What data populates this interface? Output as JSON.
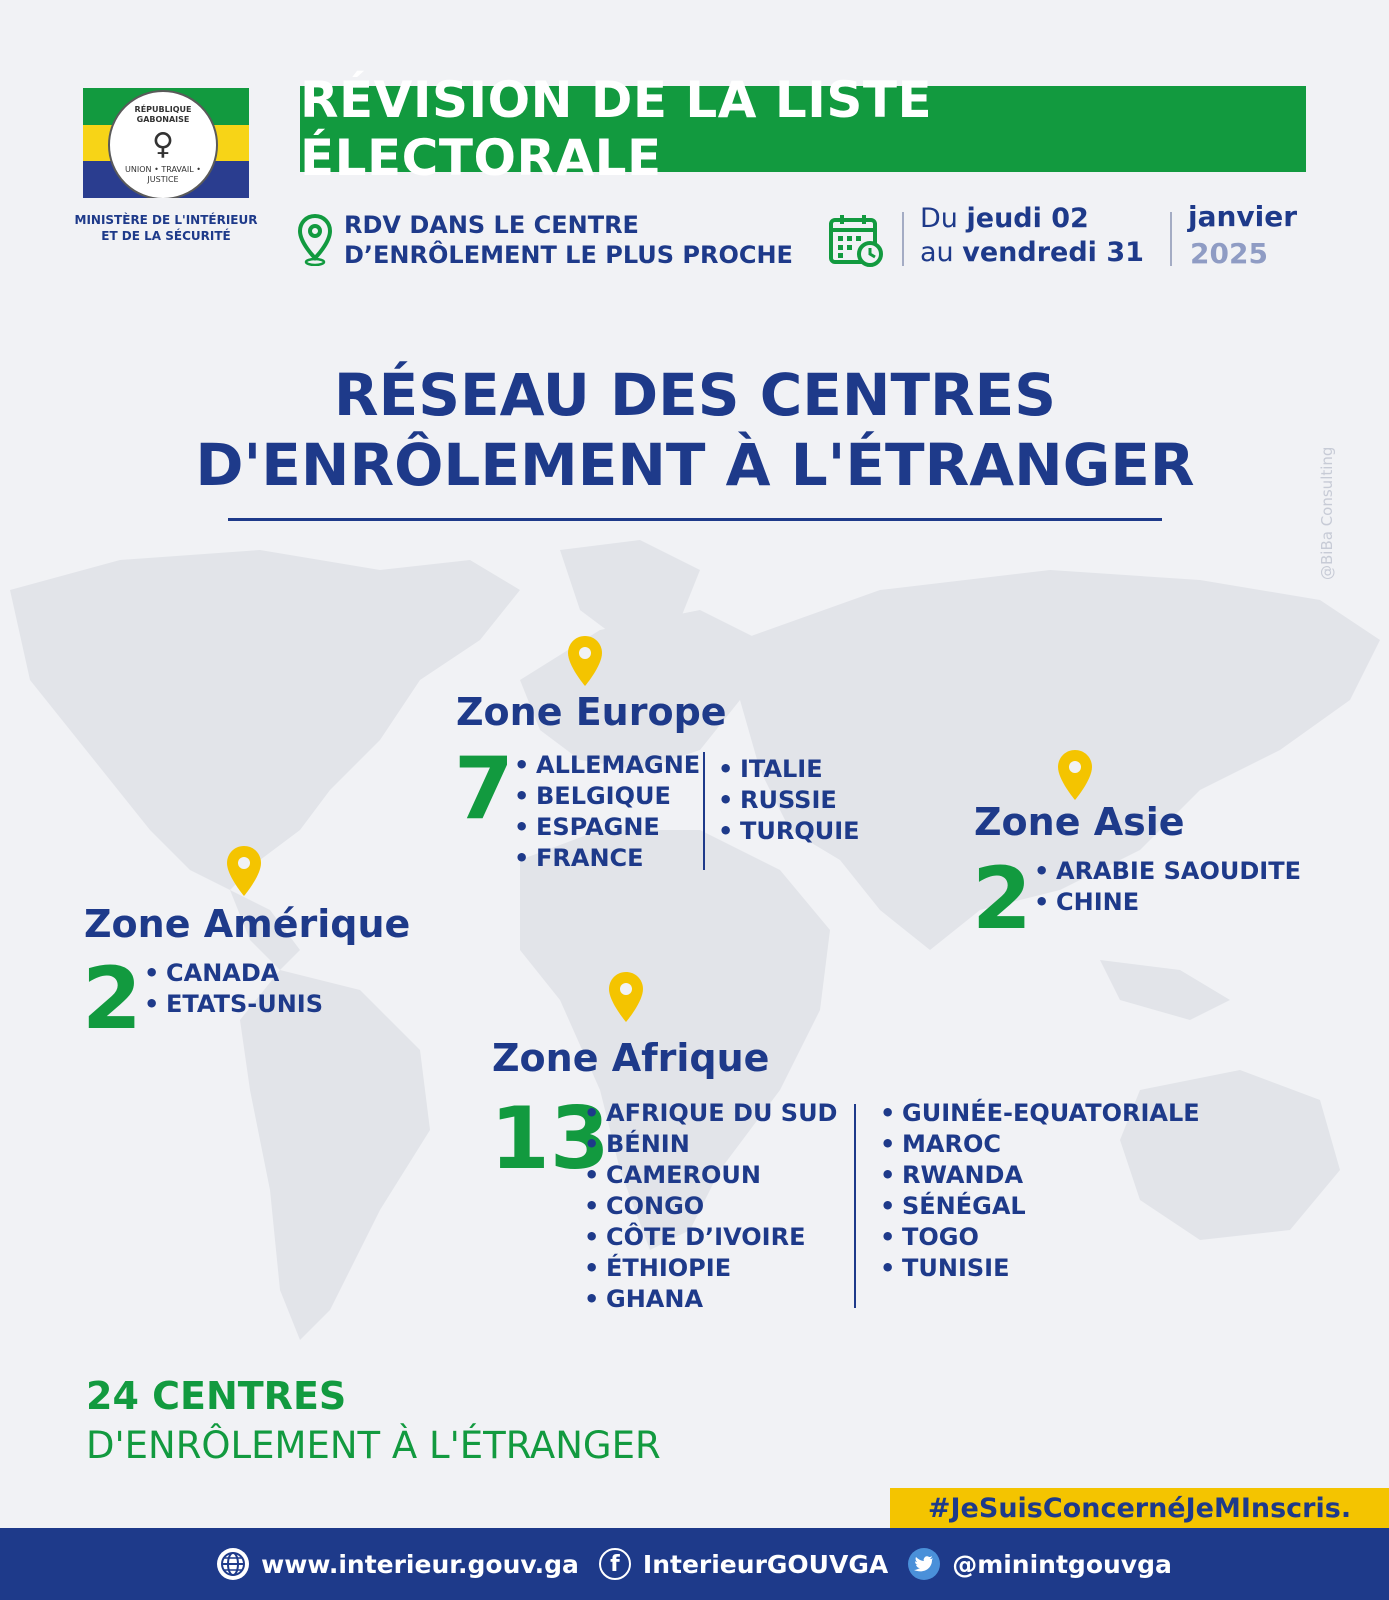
{
  "colors": {
    "navy": "#1e3a8a",
    "green": "#129a3f",
    "yellow": "#f4c400",
    "flag_green": "#129a3f",
    "flag_yellow": "#f7d417",
    "flag_blue": "#2a3d8f"
  },
  "header": {
    "seal_text_top": "RÉPUBLIQUE GABONAISE",
    "seal_text_bottom": "UNION • TRAVAIL • JUSTICE",
    "ministry_line1": "MINISTÈRE DE L'INTÉRIEUR",
    "ministry_line2": "ET DE LA SÉCURITÉ",
    "banner": "RÉVISION DE LA LISTE ÉLECTORALE",
    "rdv_line1": "RDV DANS LE CENTRE",
    "rdv_line2": "D’ENRÔLEMENT LE PLUS PROCHE",
    "date_from_prefix": "Du",
    "date_from": "jeudi 02",
    "date_to_prefix": "au",
    "date_to": "vendredi 31",
    "month": "janvier",
    "year": "2025"
  },
  "title": {
    "line1": "RÉSEAU DES CENTRES",
    "line2": "D'ENRÔLEMENT À L'ÉTRANGER"
  },
  "watermark": "@BiBa Consulting",
  "zones": {
    "europe": {
      "name": "Zone Europe",
      "count": "7",
      "col1": [
        "ALLEMAGNE",
        "BELGIQUE",
        "ESPAGNE",
        "FRANCE"
      ],
      "col2": [
        "ITALIE",
        "RUSSIE",
        "TURQUIE"
      ]
    },
    "asie": {
      "name": "Zone Asie",
      "count": "2",
      "col1": [
        "ARABIE SAOUDITE",
        "CHINE"
      ]
    },
    "amerique": {
      "name": "Zone Amérique",
      "count": "2",
      "col1": [
        "CANADA",
        "ETATS-UNIS"
      ]
    },
    "afrique": {
      "name": "Zone Afrique",
      "count": "13",
      "col1": [
        "AFRIQUE DU SUD",
        "BÉNIN",
        "CAMEROUN",
        "CONGO",
        "CÔTE D’IVOIRE",
        "ÉTHIOPIE",
        "GHANA"
      ],
      "col2": [
        "GUINÉE-EQUATORIALE",
        "MAROC",
        "RWANDA",
        "SÉNÉGAL",
        "TOGO",
        "TUNISIE"
      ]
    }
  },
  "total": {
    "count_line": "24 CENTRES",
    "label_line": "D'ENRÔLEMENT À L'ÉTRANGER"
  },
  "hashtag": "#JeSuisConcernéJeMInscris.",
  "footer": {
    "website": "www.interieur.gouv.ga",
    "facebook": "InterieurGOUVGA",
    "twitter": "@minintgouvga",
    "website_icon": "globe-icon",
    "facebook_icon": "facebook-icon",
    "twitter_icon": "twitter-icon"
  }
}
